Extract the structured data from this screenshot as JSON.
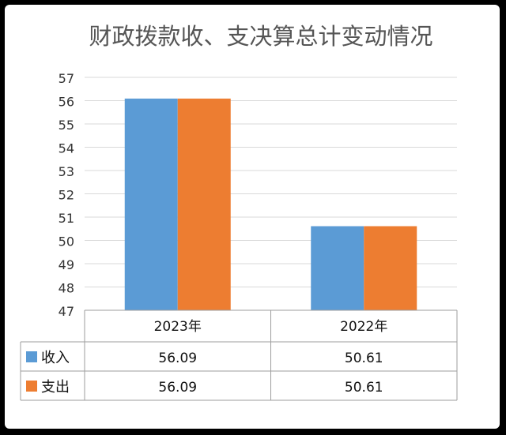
{
  "chart_data": {
    "type": "bar",
    "title": "财政拨款收、支决算总计变动情况",
    "categories": [
      "2023年",
      "2022年"
    ],
    "series": [
      {
        "name": "收入",
        "values": [
          56.09,
          50.61
        ],
        "color": "#5b9bd5"
      },
      {
        "name": "支出",
        "values": [
          56.09,
          50.61
        ],
        "color": "#ed7d31"
      }
    ],
    "ylim": [
      47,
      57
    ],
    "yticks": [
      47,
      48,
      49,
      50,
      51,
      52,
      53,
      54,
      55,
      56,
      57
    ],
    "value_labels": [
      "56.09",
      "50.61"
    ],
    "grid": true,
    "legend": "data-table"
  }
}
